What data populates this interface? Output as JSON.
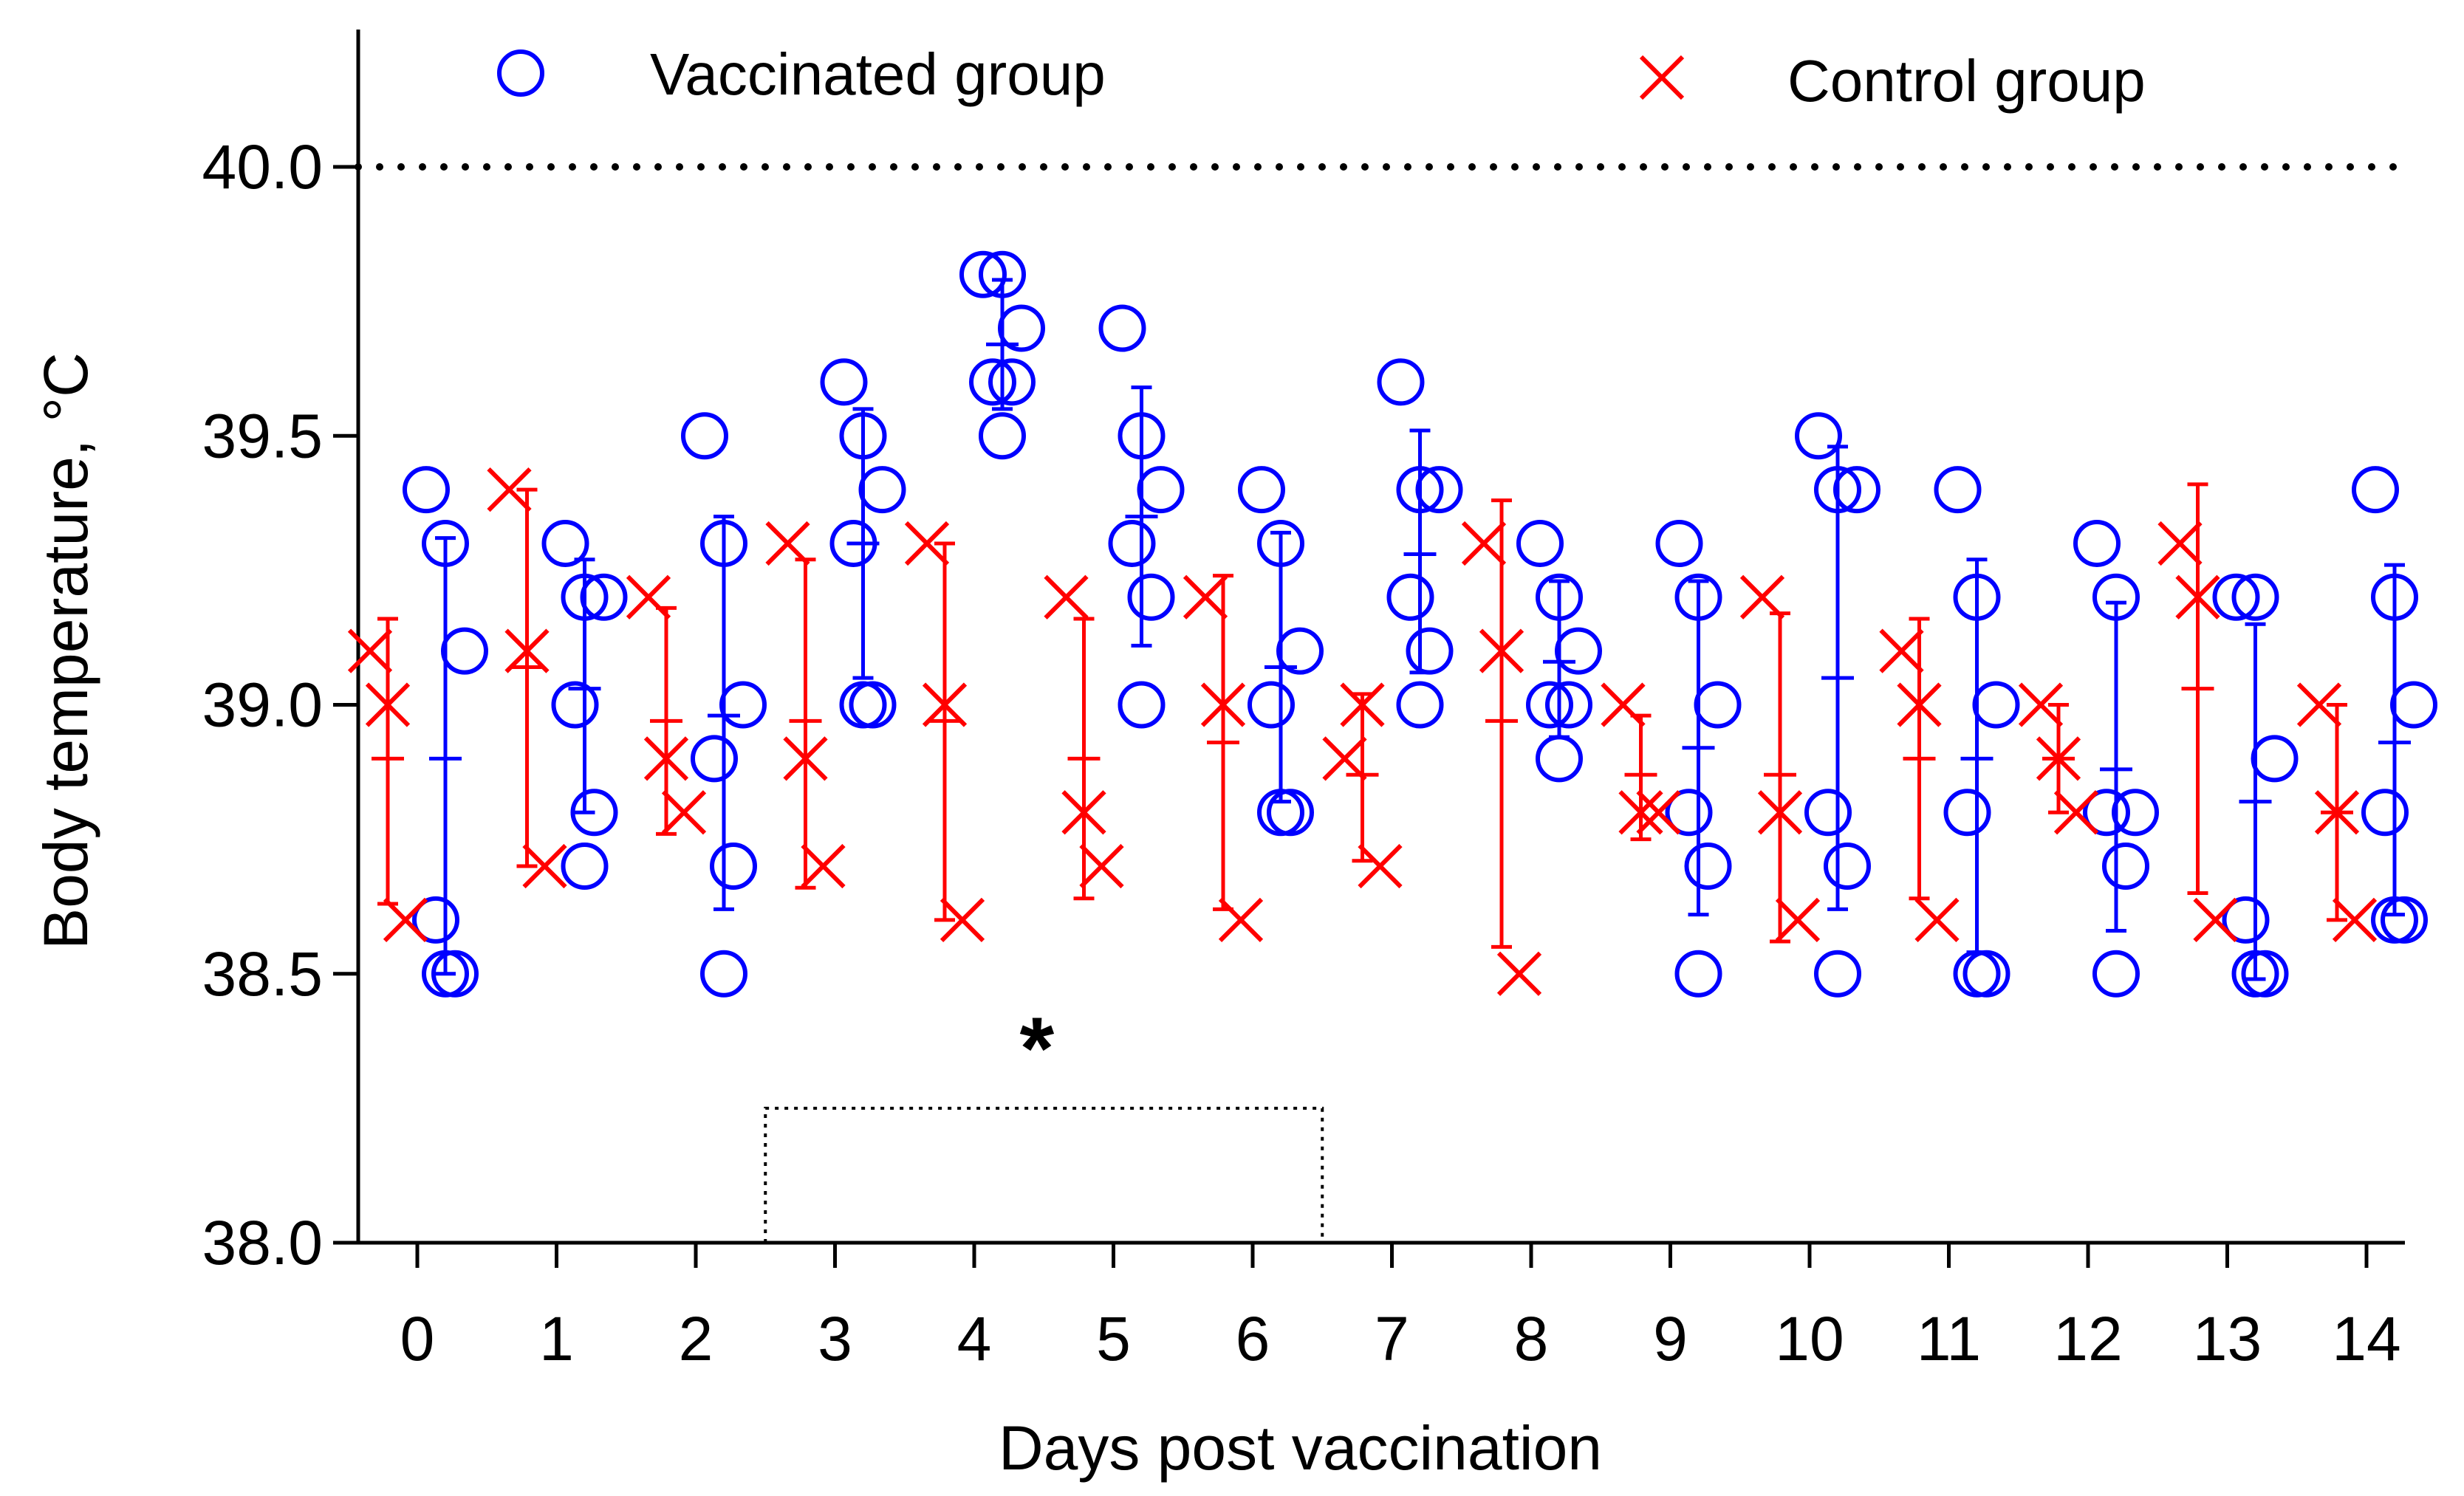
{
  "chart_data": {
    "type": "scatter",
    "xlabel": "Days post vaccination",
    "ylabel": "Body temperature, °C",
    "ylim": [
      38.0,
      40.2
    ],
    "yticks": [
      "38.0",
      "38.5",
      "39.0",
      "39.5",
      "40.0"
    ],
    "categories": [
      "0",
      "1",
      "2",
      "3",
      "4",
      "5",
      "6",
      "7",
      "8",
      "9",
      "10",
      "11",
      "12",
      "13",
      "14"
    ],
    "threshold": 40.0,
    "significance_marker": "*",
    "significance_day": 4.45,
    "highlight_days": [
      2.5,
      6.5
    ],
    "highlight_y": 38.25,
    "colors": {
      "vaccinated": "#0000ff",
      "control": "#ff0000",
      "axis": "#000000"
    },
    "series": [
      {
        "name": "Vaccinated group",
        "marker": "circle",
        "days": [
          {
            "day": 0,
            "values": [
              39.4,
              39.3,
              39.1,
              38.6,
              38.5,
              38.5
            ],
            "mean": 38.9,
            "sd_low": 38.5,
            "sd_high": 39.31
          },
          {
            "day": 1,
            "values": [
              39.3,
              39.2,
              39.2,
              39.0,
              38.8,
              38.7
            ],
            "mean": 39.03,
            "sd_low": 38.8,
            "sd_high": 39.27
          },
          {
            "day": 2,
            "values": [
              39.5,
              39.3,
              39.0,
              38.9,
              38.7,
              38.5
            ],
            "mean": 38.98,
            "sd_low": 38.62,
            "sd_high": 39.35
          },
          {
            "day": 3,
            "values": [
              39.6,
              39.5,
              39.4,
              39.3,
              39.0,
              39.0
            ],
            "mean": 39.3,
            "sd_low": 39.05,
            "sd_high": 39.55
          },
          {
            "day": 4,
            "values": [
              39.8,
              39.8,
              39.7,
              39.6,
              39.6,
              39.5
            ],
            "mean": 39.67,
            "sd_low": 39.55,
            "sd_high": 39.79
          },
          {
            "day": 5,
            "values": [
              39.7,
              39.5,
              39.4,
              39.3,
              39.2,
              39.0
            ],
            "mean": 39.35,
            "sd_low": 39.11,
            "sd_high": 39.59
          },
          {
            "day": 6,
            "values": [
              39.4,
              39.3,
              39.1,
              39.0,
              38.8,
              38.8
            ],
            "mean": 39.07,
            "sd_low": 38.82,
            "sd_high": 39.32
          },
          {
            "day": 7,
            "values": [
              39.6,
              39.4,
              39.4,
              39.2,
              39.1,
              39.0
            ],
            "mean": 39.28,
            "sd_low": 39.06,
            "sd_high": 39.51
          },
          {
            "day": 8,
            "values": [
              39.3,
              39.2,
              39.1,
              39.0,
              39.0,
              38.9
            ],
            "mean": 39.08,
            "sd_low": 38.94,
            "sd_high": 39.23
          },
          {
            "day": 9,
            "values": [
              39.3,
              39.2,
              39.0,
              38.8,
              38.7,
              38.5
            ],
            "mean": 38.92,
            "sd_low": 38.61,
            "sd_high": 39.23
          },
          {
            "day": 10,
            "values": [
              39.5,
              39.4,
              39.4,
              38.8,
              38.7,
              38.5
            ],
            "mean": 39.05,
            "sd_low": 38.62,
            "sd_high": 39.48
          },
          {
            "day": 11,
            "values": [
              39.4,
              39.2,
              39.0,
              38.8,
              38.5,
              38.5
            ],
            "mean": 38.9,
            "sd_low": 38.54,
            "sd_high": 39.27
          },
          {
            "day": 12,
            "values": [
              39.3,
              39.2,
              38.8,
              38.8,
              38.7,
              38.5
            ],
            "mean": 38.88,
            "sd_low": 38.58,
            "sd_high": 39.19
          },
          {
            "day": 13,
            "values": [
              39.2,
              39.2,
              38.9,
              38.6,
              38.5,
              38.5
            ],
            "mean": 38.82,
            "sd_low": 38.49,
            "sd_high": 39.15
          },
          {
            "day": 14,
            "values": [
              39.4,
              39.2,
              39.0,
              38.8,
              38.6,
              38.6
            ],
            "mean": 38.93,
            "sd_low": 38.61,
            "sd_high": 39.26
          }
        ]
      },
      {
        "name": "Control group",
        "marker": "cross",
        "days": [
          {
            "day": 0,
            "values": [
              39.1,
              39.0,
              38.6
            ],
            "mean": 38.9,
            "sd_low": 38.63,
            "sd_high": 39.16
          },
          {
            "day": 1,
            "values": [
              39.4,
              39.1,
              38.7
            ],
            "mean": 39.07,
            "sd_low": 38.7,
            "sd_high": 39.4
          },
          {
            "day": 2,
            "values": [
              39.2,
              38.9,
              38.8
            ],
            "mean": 38.97,
            "sd_low": 38.76,
            "sd_high": 39.18
          },
          {
            "day": 3,
            "values": [
              39.3,
              38.9,
              38.7
            ],
            "mean": 38.97,
            "sd_low": 38.66,
            "sd_high": 39.27
          },
          {
            "day": 4,
            "values": [
              39.3,
              39.0,
              38.6
            ],
            "mean": 38.97,
            "sd_low": 38.6,
            "sd_high": 39.3
          },
          {
            "day": 5,
            "values": [
              39.2,
              38.8,
              38.7
            ],
            "mean": 38.9,
            "sd_low": 38.64,
            "sd_high": 39.16
          },
          {
            "day": 6,
            "values": [
              39.2,
              39.0,
              38.6
            ],
            "mean": 38.93,
            "sd_low": 38.62,
            "sd_high": 39.24
          },
          {
            "day": 7,
            "values": [
              38.9,
              39.0,
              38.7
            ],
            "mean": 38.87,
            "sd_low": 38.71,
            "sd_high": 39.02
          },
          {
            "day": 8,
            "values": [
              39.3,
              39.1,
              38.5
            ],
            "mean": 38.97,
            "sd_low": 38.55,
            "sd_high": 39.38
          },
          {
            "day": 9,
            "values": [
              39.0,
              38.8,
              38.8
            ],
            "mean": 38.87,
            "sd_low": 38.75,
            "sd_high": 38.98
          },
          {
            "day": 10,
            "values": [
              39.2,
              38.8,
              38.6
            ],
            "mean": 38.87,
            "sd_low": 38.56,
            "sd_high": 39.17
          },
          {
            "day": 11,
            "values": [
              39.1,
              39.0,
              38.6
            ],
            "mean": 38.9,
            "sd_low": 38.64,
            "sd_high": 39.16
          },
          {
            "day": 12,
            "values": [
              39.0,
              38.9,
              38.8
            ],
            "mean": 38.9,
            "sd_low": 38.8,
            "sd_high": 39.0
          },
          {
            "day": 13,
            "values": [
              39.3,
              39.2,
              38.6
            ],
            "mean": 39.03,
            "sd_low": 38.65,
            "sd_high": 39.41
          },
          {
            "day": 14,
            "values": [
              39.0,
              38.8,
              38.6
            ],
            "mean": 38.8,
            "sd_low": 38.6,
            "sd_high": 39.0
          }
        ]
      }
    ]
  }
}
